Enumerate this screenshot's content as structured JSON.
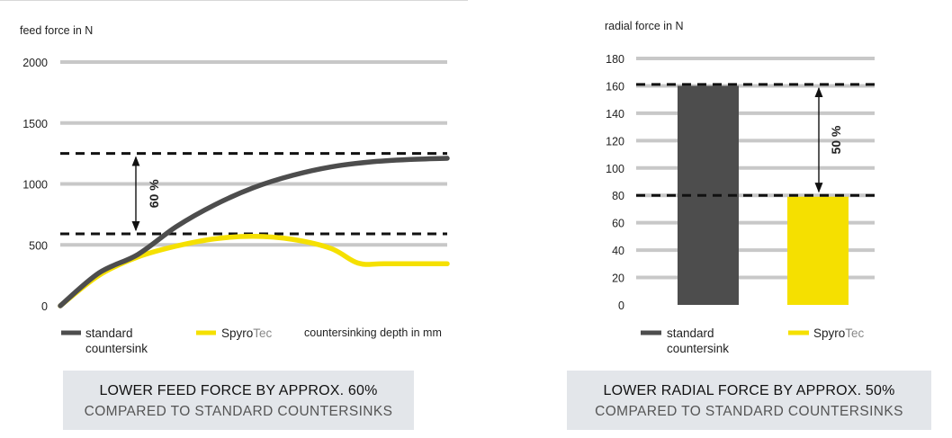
{
  "chart_data": [
    {
      "type": "line",
      "ylabel": "feed force in N",
      "xlabel": "countersinking depth in mm",
      "ylim": [
        0,
        2000
      ],
      "yticks": [
        0,
        500,
        1000,
        1500,
        2000
      ],
      "grid": true,
      "series": [
        {
          "name": "standard countersink",
          "color": "#4d4d4d",
          "points": [
            [
              0,
              0
            ],
            [
              0.5,
              270
            ],
            [
              1.0,
              420
            ],
            [
              1.5,
              650
            ],
            [
              2.0,
              830
            ],
            [
              2.5,
              970
            ],
            [
              3.0,
              1070
            ],
            [
              3.5,
              1140
            ],
            [
              4.0,
              1180
            ],
            [
              4.5,
              1200
            ],
            [
              5.0,
              1210
            ]
          ]
        },
        {
          "name_parts": [
            "Spyro",
            "Tec"
          ],
          "color": "#f5e000",
          "points": [
            [
              0,
              0
            ],
            [
              0.5,
              250
            ],
            [
              1.0,
              400
            ],
            [
              1.5,
              490
            ],
            [
              2.0,
              550
            ],
            [
              2.5,
              570
            ],
            [
              3.0,
              545
            ],
            [
              3.5,
              470
            ],
            [
              3.85,
              350
            ],
            [
              4.2,
              345
            ],
            [
              5.0,
              345
            ]
          ]
        }
      ],
      "reference_lines": [
        1250,
        590
      ],
      "annotation": "60 %",
      "legend": [
        {
          "text": "standard\ncountersink",
          "color": "#4d4d4d"
        },
        {
          "text_parts": [
            "Spyro",
            "Tec"
          ],
          "color": "#f5e000"
        }
      ],
      "caption": {
        "main": "LOWER FEED FORCE BY APPROX. 60%",
        "sub": "COMPARED TO STANDARD COUNTERSINKS"
      }
    },
    {
      "type": "bar",
      "ylabel": "radial force in N",
      "ylim": [
        0,
        180
      ],
      "yticks": [
        0,
        20,
        40,
        60,
        80,
        100,
        120,
        140,
        160,
        180
      ],
      "grid": true,
      "bars": [
        {
          "value": 160,
          "color": "#4d4d4d"
        },
        {
          "value": 79,
          "color": "#f5e000"
        }
      ],
      "reference_lines": [
        161,
        80
      ],
      "annotation": "50 %",
      "legend": [
        {
          "text": "standard\ncountersink",
          "color": "#4d4d4d"
        },
        {
          "text_parts": [
            "Spyro",
            "Tec"
          ],
          "color": "#f5e000"
        }
      ],
      "caption": {
        "main": "LOWER RADIAL FORCE BY APPROX. 50%",
        "sub": "COMPARED TO STANDARD COUNTERSINKS"
      }
    }
  ]
}
